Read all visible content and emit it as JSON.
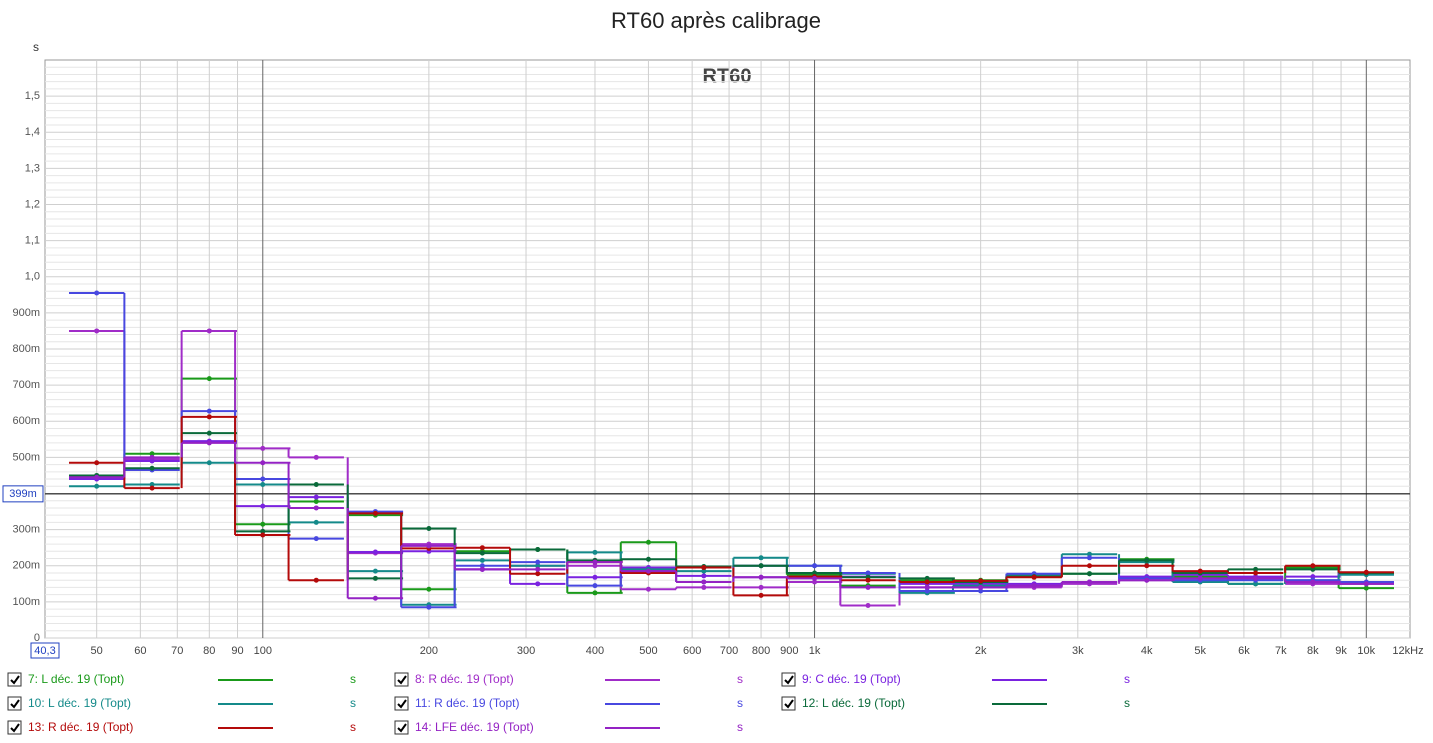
{
  "chart_data": {
    "type": "step",
    "title": "RT60 après calibrage",
    "inner_title": "RT60",
    "y_unit": "s",
    "log_x": true,
    "grid": true,
    "xlim": [
      {
        "value": 40.3,
        "label": "40,3"
      },
      {
        "value": 12000,
        "label": "12kHz"
      }
    ],
    "ylim": [
      0,
      1.6
    ],
    "xticks": [
      50,
      60,
      70,
      80,
      90,
      100,
      200,
      300,
      400,
      500,
      600,
      700,
      800,
      900,
      {
        "value": 1000,
        "label": "1k"
      },
      {
        "value": 2000,
        "label": "2k"
      },
      {
        "value": 3000,
        "label": "3k"
      },
      {
        "value": 4000,
        "label": "4k"
      },
      {
        "value": 5000,
        "label": "5k"
      },
      {
        "value": 6000,
        "label": "6k"
      },
      {
        "value": 7000,
        "label": "7k"
      },
      {
        "value": 8000,
        "label": "8k"
      },
      {
        "value": 9000,
        "label": "9k"
      },
      {
        "value": 10000,
        "label": "10k"
      }
    ],
    "yticks": [
      0,
      {
        "value": 0.1,
        "label": "100m"
      },
      {
        "value": 0.2,
        "label": "200m"
      },
      {
        "value": 0.3,
        "label": "300m"
      },
      {
        "value": 0.4,
        "label": "400m"
      },
      {
        "value": 0.5,
        "label": "500m"
      },
      {
        "value": 0.6,
        "label": "600m"
      },
      {
        "value": 0.7,
        "label": "700m"
      },
      {
        "value": 0.8,
        "label": "800m"
      },
      {
        "value": 0.9,
        "label": "900m"
      },
      {
        "value": 1.0,
        "label": "1,0"
      },
      {
        "value": 1.1,
        "label": "1,1"
      },
      {
        "value": 1.2,
        "label": "1,2"
      },
      {
        "value": 1.3,
        "label": "1,3"
      },
      {
        "value": 1.4,
        "label": "1,4"
      },
      {
        "value": 1.5,
        "label": "1,5"
      }
    ],
    "cursor": {
      "value": 0.399,
      "label": "399m"
    },
    "x": [
      50,
      63,
      80,
      100,
      125,
      160,
      200,
      250,
      315,
      400,
      500,
      630,
      800,
      1000,
      1250,
      1600,
      2000,
      2500,
      3150,
      4000,
      5000,
      6300,
      8000,
      10000
    ],
    "series": [
      {
        "name": "7: L déc. 19 (Topt)",
        "unit": "s",
        "color": "#1a9a1a",
        "values": [
          0.445,
          0.51,
          0.718,
          0.315,
          0.378,
          0.34,
          0.135,
          0.24,
          0.245,
          0.125,
          0.265,
          0.195,
          0.2,
          0.175,
          0.145,
          0.16,
          0.16,
          0.17,
          0.178,
          0.218,
          0.17,
          0.15,
          0.195,
          0.138
        ]
      },
      {
        "name": "8: R déc. 19 (Topt)",
        "unit": "s",
        "color": "#a02cc8",
        "values": [
          0.85,
          0.495,
          0.85,
          0.525,
          0.5,
          0.235,
          0.26,
          0.19,
          0.2,
          0.2,
          0.135,
          0.14,
          0.14,
          0.155,
          0.09,
          0.14,
          0.14,
          0.14,
          0.15,
          0.16,
          0.16,
          0.165,
          0.15,
          0.15
        ]
      },
      {
        "name": "9: C déc. 19 (Topt)",
        "unit": "s",
        "color": "#7a22e0",
        "values": [
          0.44,
          0.49,
          0.545,
          0.365,
          0.39,
          0.238,
          0.24,
          0.19,
          0.15,
          0.168,
          0.195,
          0.172,
          0.168,
          0.17,
          0.17,
          0.15,
          0.15,
          0.15,
          0.155,
          0.17,
          0.175,
          0.17,
          0.17,
          0.18
        ]
      },
      {
        "name": "10: L déc. 19 (Topt)",
        "unit": "s",
        "color": "#148a8a",
        "values": [
          0.42,
          0.425,
          0.485,
          0.425,
          0.32,
          0.185,
          0.092,
          0.215,
          0.2,
          0.237,
          0.19,
          0.185,
          0.222,
          0.2,
          0.178,
          0.125,
          0.145,
          0.175,
          0.232,
          0.21,
          0.155,
          0.15,
          0.16,
          0.175
        ]
      },
      {
        "name": "11: R déc. 19 (Topt)",
        "unit": "s",
        "color": "#4848e0",
        "values": [
          0.955,
          0.465,
          0.628,
          0.44,
          0.275,
          0.35,
          0.085,
          0.2,
          0.21,
          0.145,
          0.185,
          0.155,
          0.2,
          0.2,
          0.18,
          0.13,
          0.13,
          0.178,
          0.222,
          0.165,
          0.16,
          0.16,
          0.16,
          0.155
        ]
      },
      {
        "name": "12: L déc. 19 (Topt)",
        "unit": "s",
        "color": "#0a6a3a",
        "values": [
          0.45,
          0.47,
          0.567,
          0.295,
          0.425,
          0.165,
          0.303,
          0.235,
          0.245,
          0.215,
          0.218,
          0.198,
          0.2,
          0.18,
          0.168,
          0.165,
          0.155,
          0.17,
          0.178,
          0.215,
          0.18,
          0.19,
          0.19,
          0.18
        ]
      },
      {
        "name": "13: R déc. 19 (Topt)",
        "unit": "s",
        "color": "#b40a0a",
        "values": [
          0.485,
          0.415,
          0.612,
          0.285,
          0.16,
          0.345,
          0.248,
          0.25,
          0.178,
          0.21,
          0.18,
          0.195,
          0.118,
          0.17,
          0.16,
          0.155,
          0.158,
          0.168,
          0.2,
          0.2,
          0.185,
          0.18,
          0.2,
          0.182
        ]
      },
      {
        "name": "14: LFE déc. 19 (Topt)",
        "unit": "s",
        "color": "#9422c4",
        "values": [
          0.445,
          0.5,
          0.54,
          0.485,
          0.36,
          0.11,
          0.255,
          0.19,
          0.19,
          0.21,
          0.185,
          0.155,
          0.168,
          0.165,
          0.14,
          0.14,
          0.14,
          0.145,
          0.155,
          0.16,
          0.165,
          0.165,
          0.155,
          0.15
        ]
      }
    ]
  }
}
